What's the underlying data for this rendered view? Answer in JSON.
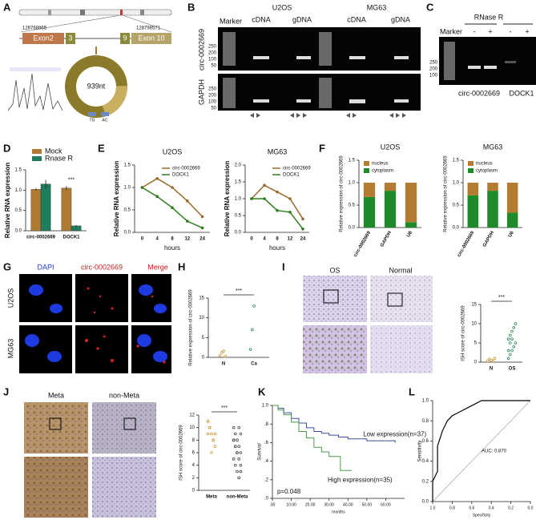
{
  "panels": {
    "letters": [
      "A",
      "B",
      "C",
      "D",
      "E",
      "F",
      "G",
      "H",
      "I",
      "J",
      "K",
      "L"
    ]
  },
  "panel_a": {
    "exons": [
      "Exon2",
      "3",
      "9",
      "Exon 10"
    ],
    "coords": [
      "128768865",
      "128798571"
    ],
    "size": "939nt",
    "primers": [
      "TG",
      "AC"
    ]
  },
  "panel_b": {
    "cell_lines": [
      "U2OS",
      "MG63"
    ],
    "marker": "Marker",
    "lanes": [
      "cDNA",
      "gDNA",
      "cDNA",
      "gDNA"
    ],
    "rows": [
      "circ-0002669",
      "GAPDH"
    ],
    "ladder": [
      "250",
      "200",
      "100",
      "50"
    ]
  },
  "panel_c": {
    "title": "RNase R",
    "marker": "Marker",
    "signs": [
      "-",
      "+",
      "-",
      "+"
    ],
    "ladder": [
      "250",
      "200",
      "100"
    ],
    "genes": [
      "circ-0002669",
      "DOCK1"
    ]
  },
  "panel_g": {
    "stains": [
      "DAPI",
      "circ-0002669",
      "Merge"
    ],
    "cells": [
      "U2OS",
      "MG63"
    ]
  },
  "panel_i": {
    "tissues": [
      "OS",
      "Normal"
    ]
  },
  "panel_j": {
    "groups": [
      "Meta",
      "non-Meta"
    ]
  },
  "chart_data": [
    {
      "type": "bar",
      "ylabel": "Relative RNA expression",
      "categories": [
        "circ-0002669",
        "DOCK1"
      ],
      "series": [
        {
          "name": "Mock",
          "color": "#b07a32",
          "values": [
            1.02,
            1.05
          ],
          "errors": [
            0.03,
            0.05
          ]
        },
        {
          "name": "Rnase R",
          "color": "#1e7d5c",
          "values": [
            1.15,
            0.12
          ],
          "errors": [
            0.1,
            0.02
          ]
        }
      ],
      "ylim": [
        0,
        1.5
      ],
      "yticks": [
        {
          "value": 0,
          "label": "0.0"
        },
        {
          "value": 0.5,
          "label": "0.5"
        },
        {
          "value": 1,
          "label": "1.0"
        },
        {
          "value": 1.5,
          "label": "1.5"
        }
      ],
      "annotation": "***"
    },
    {
      "type": "line",
      "title": "U2OS",
      "xlabel": "hours",
      "ylabel": "Relative RNA expression",
      "categories": [
        "0",
        "4",
        "8",
        "12",
        "24"
      ],
      "series": [
        {
          "name": "circ-0002669",
          "color": "#9b6a2c",
          "values": [
            1,
            1.2,
            1,
            0.7,
            0.35
          ]
        },
        {
          "name": "DOCK1",
          "color": "#2e7d1e",
          "values": [
            1,
            0.8,
            0.55,
            0.25,
            0.1
          ]
        }
      ],
      "ylim": [
        0,
        1.5
      ],
      "yticks": [
        {
          "value": 0,
          "label": "0.0"
        },
        {
          "value": 0.5,
          "label": "0.5"
        },
        {
          "value": 1,
          "label": "1.0"
        },
        {
          "value": 1.5,
          "label": "1.5"
        }
      ]
    },
    {
      "type": "line",
      "title": "MG63",
      "xlabel": "hours",
      "ylabel": "Relative RNA expression",
      "categories": [
        "0",
        "4",
        "8",
        "12",
        "24"
      ],
      "series": [
        {
          "name": "circ-0002669",
          "color": "#9b6a2c",
          "values": [
            1,
            1.4,
            1.2,
            1,
            0.4
          ]
        },
        {
          "name": "DOCK1",
          "color": "#2e7d1e",
          "values": [
            1,
            1,
            0.65,
            0.6,
            0.1
          ]
        }
      ],
      "ylim": [
        0,
        2
      ],
      "yticks": [
        {
          "value": 0,
          "label": "0.0"
        },
        {
          "value": 0.5,
          "label": "0.5"
        },
        {
          "value": 1,
          "label": "1.0"
        },
        {
          "value": 1.5,
          "label": "1.5"
        },
        {
          "value": 2,
          "label": "2.0"
        }
      ]
    },
    {
      "type": "stacked",
      "title": "U2OS",
      "ylabel": "Relative expression of circ-0002669",
      "categories": [
        "circ-0002669",
        "GAPDH",
        "U6"
      ],
      "series": [
        {
          "name": "cytoplasm",
          "color": "#1f8a2a",
          "values": [
            0.68,
            0.82,
            0.12
          ]
        },
        {
          "name": "nucleus",
          "color": "#b47c30",
          "values": [
            0.32,
            0.18,
            0.88
          ]
        }
      ],
      "ylim": [
        0,
        1.5
      ],
      "yticks": [
        {
          "value": 0,
          "label": "0.0"
        },
        {
          "value": 0.5,
          "label": "0.5"
        },
        {
          "value": 1,
          "label": "1.0"
        },
        {
          "value": 1.5,
          "label": "1.5"
        }
      ]
    },
    {
      "type": "stacked",
      "title": "MG63",
      "ylabel": "Relative expression of circ-0002669",
      "categories": [
        "circ-0002669",
        "GAPDH",
        "U6"
      ],
      "series": [
        {
          "name": "cytoplasm",
          "color": "#1f8a2a",
          "values": [
            0.72,
            0.82,
            0.33
          ]
        },
        {
          "name": "nucleus",
          "color": "#b47c30",
          "values": [
            0.28,
            0.18,
            0.67
          ]
        }
      ],
      "ylim": [
        0,
        1.5
      ],
      "yticks": [
        {
          "value": 0,
          "label": "0.0"
        },
        {
          "value": 0.5,
          "label": "0.5"
        },
        {
          "value": 1,
          "label": "1.0"
        },
        {
          "value": 1.5,
          "label": "1.5"
        }
      ]
    },
    {
      "type": "strip",
      "ylabel": "Relative expression of circ-0002669",
      "categories": [
        "N",
        "Ca"
      ],
      "colors": [
        "#c89a3a",
        "#2e8b57"
      ],
      "groups": [
        [
          0.4,
          1.2,
          1.6,
          0.3
        ],
        [
          2,
          7,
          13
        ]
      ],
      "ylim": [
        0,
        15
      ],
      "yticks": [
        0,
        5,
        10,
        15
      ],
      "annotation": "***"
    },
    {
      "type": "strip",
      "ylabel": "ISH score of circ-0002669",
      "categories": [
        "N",
        "OS"
      ],
      "colors": [
        "#c89a3a",
        "#2e8b57"
      ],
      "groups": [
        [
          0.3,
          0.8,
          0.5,
          0.2,
          1
        ],
        [
          1,
          2,
          3,
          4,
          5,
          6,
          7,
          8,
          9,
          10,
          3,
          5,
          6
        ]
      ],
      "ylim": [
        0,
        15
      ],
      "yticks": [
        0,
        5,
        10,
        15
      ],
      "annotation": "***"
    },
    {
      "type": "strip",
      "ylabel": "ISH score of circ-0002669",
      "categories": [
        "Meta",
        "non-Meta"
      ],
      "colors": [
        "#c89a3a",
        "#444444"
      ],
      "groups": [
        [
          11,
          10,
          9,
          8,
          7,
          9,
          10,
          6,
          8,
          9,
          11
        ],
        [
          10,
          9,
          8,
          7,
          6,
          5,
          4,
          3,
          2,
          9,
          8,
          7,
          6,
          5,
          4,
          8,
          7,
          6,
          10,
          3
        ]
      ],
      "ylim": [
        0,
        12
      ],
      "yticks": [
        0,
        2,
        4,
        6,
        8,
        10,
        12
      ],
      "annotation": "***"
    },
    {
      "type": "step",
      "xlabel": "months",
      "ylabel": "Survival",
      "series": [
        {
          "name": "Low expression(n=37)",
          "color": "#3a4f9a",
          "x": [
            0,
            3,
            6,
            10,
            14,
            18,
            22,
            26,
            30,
            35,
            40,
            50,
            65
          ],
          "values": [
            1,
            0.97,
            0.92,
            0.86,
            0.81,
            0.76,
            0.72,
            0.7,
            0.68,
            0.66,
            0.64,
            0.62,
            0.6
          ]
        },
        {
          "name": "High expression(n=35)",
          "color": "#4c9a4c",
          "x": [
            0,
            3,
            6,
            10,
            14,
            18,
            22,
            26,
            30,
            36,
            42
          ],
          "values": [
            1,
            0.95,
            0.9,
            0.82,
            0.72,
            0.65,
            0.55,
            0.5,
            0.45,
            0.3,
            0.3
          ]
        }
      ],
      "xlim": [
        0,
        70
      ],
      "xticks": [
        {
          "value": 0,
          "label": ".00"
        },
        {
          "value": 10,
          "label": "10.00"
        },
        {
          "value": 20,
          "label": "20.00"
        },
        {
          "value": 30,
          "label": "30.00"
        },
        {
          "value": 40,
          "label": "40.00"
        },
        {
          "value": 50,
          "label": "50.00"
        },
        {
          "value": 60,
          "label": "60.00"
        }
      ],
      "ylim": [
        0,
        1
      ],
      "yticks": [
        {
          "value": 0,
          "label": ".0"
        },
        {
          "value": 0.2,
          "label": ".2"
        },
        {
          "value": 0.4,
          "label": ".4"
        },
        {
          "value": 0.6,
          "label": ".6"
        },
        {
          "value": 0.8,
          "label": ".8"
        },
        {
          "value": 1,
          "label": "1.0"
        }
      ],
      "annotation": "p=0.048"
    },
    {
      "type": "roc",
      "xlabel": "Specificity",
      "ylabel": "Sensitivity",
      "series": [
        {
          "color": "#000000",
          "x": [
            1,
            1,
            0.95,
            0.95,
            0.9,
            0.85,
            0.8,
            0.7,
            0.6,
            0.5,
            0.3,
            0.1,
            0
          ],
          "values": [
            0,
            0.2,
            0.3,
            0.55,
            0.7,
            0.8,
            0.85,
            0.9,
            0.95,
            1,
            1,
            1,
            1
          ]
        }
      ],
      "xlim": [
        1,
        0
      ],
      "xticks": [
        {
          "value": 1,
          "label": "1.0"
        },
        {
          "value": 0.8,
          "label": "0.8"
        },
        {
          "value": 0.6,
          "label": "0.6"
        },
        {
          "value": 0.4,
          "label": "0.4"
        },
        {
          "value": 0.2,
          "label": "0.2"
        },
        {
          "value": 0,
          "label": "0.0"
        }
      ],
      "ylim": [
        0,
        1
      ],
      "yticks": [
        {
          "value": 0,
          "label": "0.0"
        },
        {
          "value": 0.2,
          "label": "0.2"
        },
        {
          "value": 0.4,
          "label": "0.4"
        },
        {
          "value": 0.6,
          "label": "0.6"
        },
        {
          "value": 0.8,
          "label": "0.8"
        },
        {
          "value": 1,
          "label": "1.0"
        }
      ],
      "annotation": "AUC: 0.870"
    }
  ]
}
